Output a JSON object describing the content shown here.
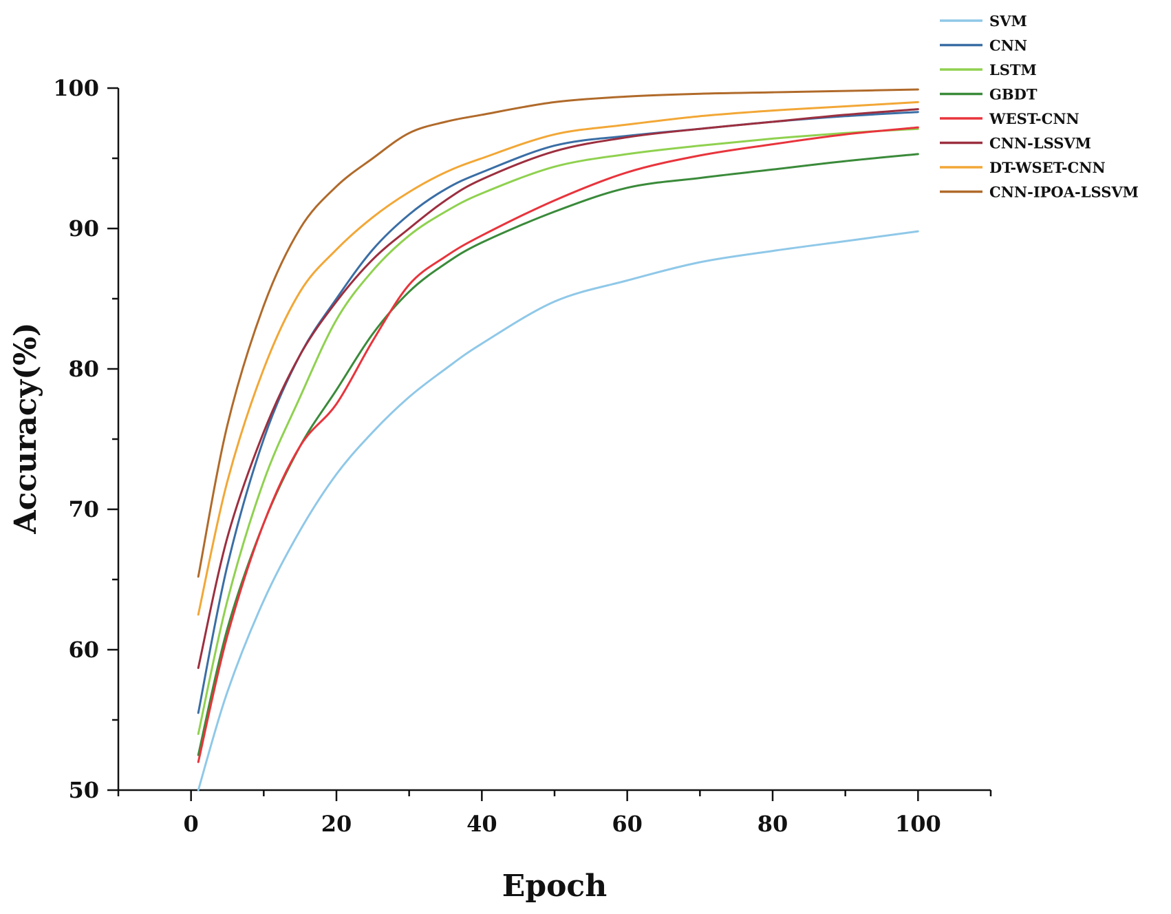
{
  "chart_data": {
    "type": "line",
    "title": "",
    "xlabel": "Epoch",
    "ylabel": "Accuracy(%)",
    "xlim": [
      -10,
      110
    ],
    "ylim": [
      50,
      100
    ],
    "xticks": [
      0,
      20,
      40,
      60,
      80,
      100
    ],
    "yticks": [
      50,
      60,
      70,
      80,
      90,
      100
    ],
    "grid": false,
    "legend_position": "top-right",
    "x": [
      1,
      5,
      10,
      15,
      20,
      25,
      30,
      35,
      40,
      50,
      60,
      70,
      80,
      90,
      100
    ],
    "series": [
      {
        "name": "SVM",
        "color": "#8fc8e8",
        "values": [
          50.0,
          57.0,
          63.5,
          68.5,
          72.5,
          75.5,
          78.0,
          80.0,
          81.8,
          84.8,
          86.3,
          87.6,
          88.4,
          89.1,
          89.8
        ]
      },
      {
        "name": "CNN",
        "color": "#3a6ea5",
        "values": [
          55.5,
          66.0,
          75.0,
          81.0,
          85.0,
          88.5,
          91.0,
          92.8,
          94.0,
          95.9,
          96.6,
          97.1,
          97.6,
          98.0,
          98.3
        ]
      },
      {
        "name": "LSTM",
        "color": "#8fd14f",
        "values": [
          54.0,
          63.5,
          72.0,
          78.0,
          83.5,
          87.0,
          89.5,
          91.2,
          92.5,
          94.4,
          95.3,
          95.9,
          96.4,
          96.8,
          97.1
        ]
      },
      {
        "name": "GBDT",
        "color": "#3a8a3a",
        "values": [
          52.5,
          61.5,
          69.0,
          74.5,
          78.5,
          82.5,
          85.5,
          87.5,
          89.0,
          91.2,
          92.9,
          93.6,
          94.2,
          94.8,
          95.3
        ]
      },
      {
        "name": "WEST-CNN",
        "color": "#e8343c",
        "values": [
          52.0,
          61.0,
          69.0,
          74.5,
          77.5,
          82.0,
          86.0,
          88.0,
          89.5,
          92.0,
          94.0,
          95.2,
          96.0,
          96.7,
          97.2
        ]
      },
      {
        "name": "CNN-LSSVM",
        "color": "#9c2f3f",
        "values": [
          58.7,
          68.0,
          75.5,
          81.0,
          84.8,
          87.8,
          90.0,
          92.0,
          93.5,
          95.5,
          96.5,
          97.1,
          97.6,
          98.1,
          98.5
        ]
      },
      {
        "name": "DT-WSET-CNN",
        "color": "#f2a736",
        "values": [
          62.5,
          72.0,
          80.0,
          85.5,
          88.5,
          90.8,
          92.6,
          94.0,
          95.0,
          96.7,
          97.4,
          98.0,
          98.4,
          98.7,
          99.0
        ]
      },
      {
        "name": "CNN-IPOA-LSSVM",
        "color": "#b06a2a",
        "values": [
          65.2,
          76.0,
          84.5,
          90.0,
          93.0,
          95.0,
          96.8,
          97.6,
          98.1,
          99.0,
          99.4,
          99.6,
          99.7,
          99.8,
          99.9
        ]
      }
    ]
  }
}
